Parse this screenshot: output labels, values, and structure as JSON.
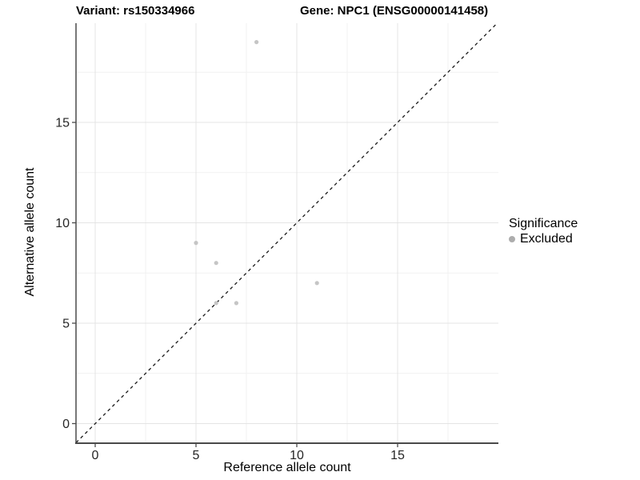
{
  "chart_data": {
    "type": "scatter",
    "title_left": "Variant: rs150334966",
    "title_right": "Gene: NPC1 (ENSG00000141458)",
    "xlabel": "Reference allele count",
    "ylabel": "Alternative allele count",
    "x_ticks": [
      {
        "value": 0,
        "label": "0"
      },
      {
        "value": 5,
        "label": "5"
      },
      {
        "value": 10,
        "label": "10"
      },
      {
        "value": 15,
        "label": "15"
      }
    ],
    "y_ticks": [
      {
        "value": 0,
        "label": "0"
      },
      {
        "value": 5,
        "label": "5"
      },
      {
        "value": 10,
        "label": "10"
      },
      {
        "value": 15,
        "label": "15"
      }
    ],
    "minor_ticks": [
      2.5,
      7.5,
      12.5,
      17.5
    ],
    "xlim": [
      -0.95,
      20.0
    ],
    "ylim": [
      -0.98,
      19.94
    ],
    "grid": true,
    "identity_line": {
      "style": "dashed",
      "equation": "y = x",
      "color": "#1a1a1a"
    },
    "series": [
      {
        "name": "Excluded",
        "color": "#c5c5c5",
        "points": [
          {
            "x": 8,
            "y": 19
          },
          {
            "x": 5,
            "y": 9
          },
          {
            "x": 6,
            "y": 8
          },
          {
            "x": 6,
            "y": 6
          },
          {
            "x": 7,
            "y": 6
          },
          {
            "x": 11,
            "y": 7
          }
        ]
      }
    ],
    "legend": {
      "position": "right",
      "title": "Significance",
      "items": [
        {
          "label": "Excluded",
          "color": "#adadad"
        }
      ]
    },
    "colors": {
      "grid_major": "#e4e4e4",
      "grid_minor": "#f1f1f1",
      "axis_line": "#4a4a4a",
      "tick_text": "#262626",
      "panel_background": "#ffffff"
    }
  }
}
